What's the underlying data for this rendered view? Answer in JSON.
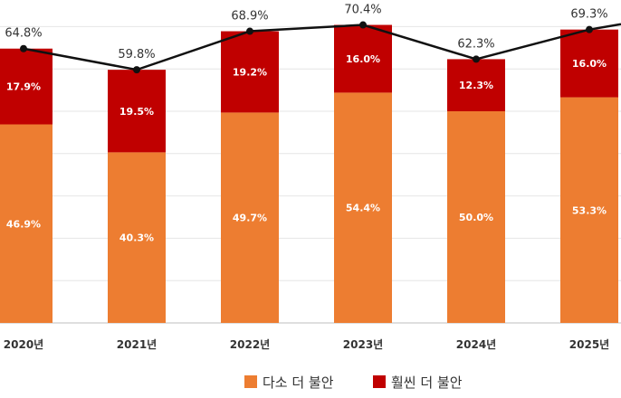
{
  "chart_data": {
    "type": "bar",
    "stacked": true,
    "categories": [
      "2020년",
      "2021년",
      "2022년",
      "2023년",
      "2024년",
      "2025년"
    ],
    "series": [
      {
        "name": "다소 더 불안",
        "color": "#ED7D31",
        "values": [
          46.9,
          40.3,
          49.7,
          54.4,
          50.0,
          53.3
        ],
        "labels": [
          "46.9%",
          "40.3%",
          "49.7%",
          "54.4%",
          "50.0%",
          "53.3%"
        ]
      },
      {
        "name": "훨씬 더 불안",
        "color": "#C00000",
        "values": [
          17.9,
          19.5,
          19.2,
          16.0,
          12.3,
          16.0
        ],
        "labels": [
          "17.9%",
          "19.5%",
          "19.2%",
          "16.0%",
          "12.3%",
          "16.0%"
        ]
      }
    ],
    "total": {
      "values": [
        64.8,
        59.8,
        68.9,
        70.4,
        62.3,
        69.3
      ],
      "labels": [
        "64.8%",
        "59.8%",
        "68.9%",
        "70.4%",
        "62.3%",
        "69.3%"
      ],
      "line_color": "#111111"
    },
    "ylim": [
      0,
      75
    ],
    "grid": true,
    "legend_position": "bottom-right",
    "title": "",
    "xlabel": "",
    "ylabel": ""
  }
}
